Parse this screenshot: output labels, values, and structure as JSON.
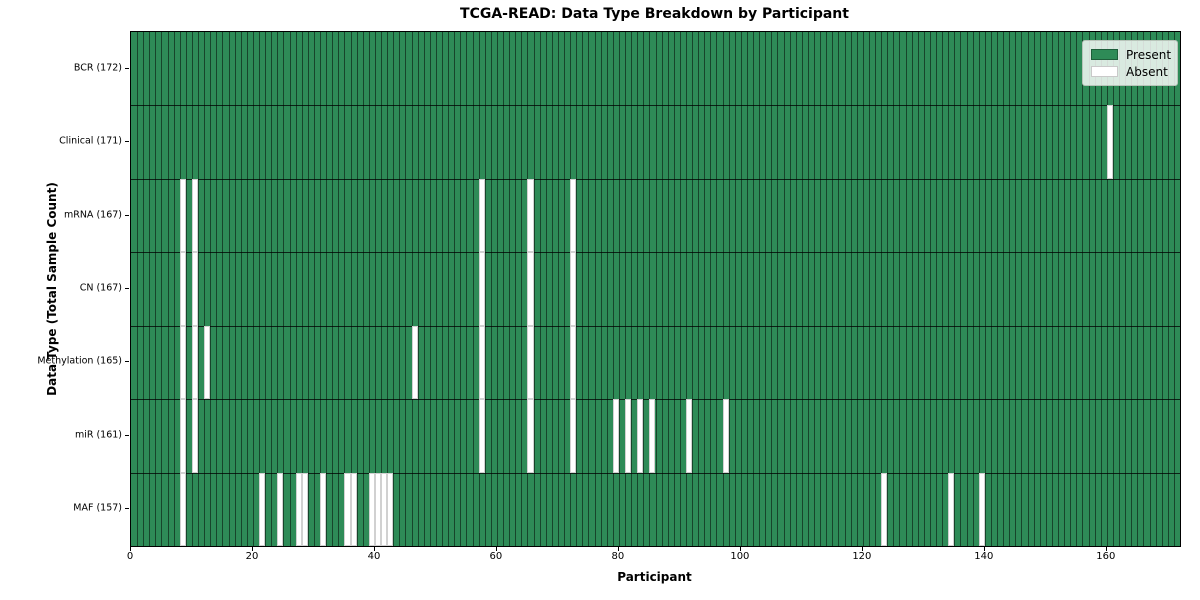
{
  "title": "TCGA-READ: Data Type Breakdown by Participant",
  "axes": {
    "xlabel": "Participant",
    "ylabel": "Data Type (Total Sample Count)"
  },
  "legend": {
    "items": [
      {
        "label": "Present",
        "color": "#2e8b57"
      },
      {
        "label": "Absent",
        "color": "#ffffff"
      }
    ]
  },
  "chart_data": {
    "type": "heatmap",
    "title": "TCGA-READ: Data Type Breakdown by Participant",
    "xlabel": "Participant",
    "ylabel": "Data Type (Total Sample Count)",
    "x_ticks": [
      0,
      20,
      40,
      60,
      80,
      100,
      120,
      140,
      160
    ],
    "xlim": [
      0,
      172
    ],
    "total_participants": 172,
    "present_color": "#2e8b57",
    "absent_color": "#ffffff",
    "legend_position": "upper right",
    "grid": true,
    "rows": [
      {
        "name": "BCR",
        "label": "BCR (172)",
        "count": 172,
        "absent": []
      },
      {
        "name": "Clinical",
        "label": "Clinical (171)",
        "count": 171,
        "absent": [
          160
        ]
      },
      {
        "name": "mRNA",
        "label": "mRNA (167)",
        "count": 167,
        "absent": [
          8,
          10,
          57,
          65,
          72
        ]
      },
      {
        "name": "CN",
        "label": "CN (167)",
        "count": 167,
        "absent": [
          8,
          10,
          57,
          65,
          72
        ]
      },
      {
        "name": "Methylation",
        "label": "Methylation (165)",
        "count": 165,
        "absent": [
          8,
          10,
          12,
          46,
          57,
          65,
          72
        ]
      },
      {
        "name": "miR",
        "label": "miR (161)",
        "count": 161,
        "absent": [
          8,
          10,
          57,
          65,
          72,
          79,
          81,
          83,
          85,
          91,
          97
        ]
      },
      {
        "name": "MAF",
        "label": "MAF (157)",
        "count": 157,
        "absent": [
          8,
          21,
          24,
          27,
          28,
          31,
          35,
          36,
          39,
          40,
          41,
          42,
          123,
          134,
          139
        ]
      }
    ]
  }
}
